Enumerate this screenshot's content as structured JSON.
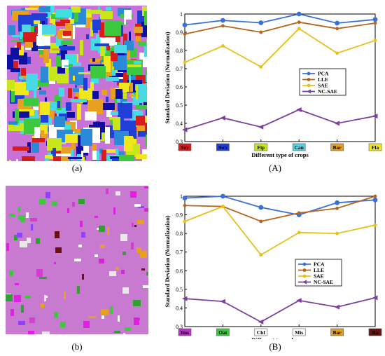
{
  "captions": {
    "a": "(a)",
    "A": "(A)",
    "b": "(b)",
    "B": "(B)"
  },
  "colors": {
    "PCA": "#3a6fd8",
    "LLE": "#b5651d",
    "SAE": "#e8c01a",
    "NC-SAE": "#7b3fa0",
    "map_bg_top": "#c872d8",
    "map_bg_bottom": "#c87ad0"
  },
  "chart_data": [
    {
      "type": "line",
      "panel": "A",
      "categories": [
        "Soy",
        "Sub",
        "Fip",
        "Can",
        "Bar",
        "Fla"
      ],
      "category_colors": [
        "#d81b1b",
        "#1f3fd6",
        "#c8e61a",
        "#49d8e8",
        "#e8a020",
        "#f0e81a"
      ],
      "xlabel": "Different type of crops",
      "ylabel": "Standard Deviation (Normalization)",
      "ylim": [
        0.3,
        1.0
      ],
      "yticks": [
        "0.3",
        "0.4",
        "0.5",
        "0.6",
        "0.7",
        "0.8",
        "0.9",
        "1"
      ],
      "legend_position": "right",
      "series": [
        {
          "name": "PCA",
          "values": [
            0.94,
            0.965,
            0.952,
            1.0,
            0.95,
            0.97
          ]
        },
        {
          "name": "LLE",
          "values": [
            0.89,
            0.935,
            0.9,
            0.955,
            0.92,
            0.95
          ]
        },
        {
          "name": "SAE",
          "values": [
            0.735,
            0.825,
            0.71,
            0.92,
            0.785,
            0.855
          ]
        },
        {
          "name": "NC-SAE",
          "values": [
            0.365,
            0.43,
            0.38,
            0.475,
            0.4,
            0.44
          ]
        }
      ]
    },
    {
      "type": "line",
      "panel": "B",
      "categories": [
        "Bus",
        "Oat",
        "Chf",
        "Mis",
        "Bar",
        "Ra"
      ],
      "category_colors": [
        "#c030d0",
        "#3ec83e",
        "#ffffff",
        "#ffffff",
        "#e0a020",
        "#6b1010"
      ],
      "xlabel": "Different type of crops",
      "ylabel": "Standard Deviation (Normalization)",
      "ylim": [
        0.3,
        1.0
      ],
      "yticks": [
        "0.3",
        "0.4",
        "0.5",
        "0.6",
        "0.7",
        "0.8",
        "0.9",
        "1"
      ],
      "legend_position": "right",
      "series": [
        {
          "name": "PCA",
          "values": [
            0.99,
            1.0,
            0.94,
            0.9,
            0.965,
            0.98
          ]
        },
        {
          "name": "LLE",
          "values": [
            0.95,
            0.945,
            0.865,
            0.91,
            0.935,
            1.0
          ]
        },
        {
          "name": "SAE",
          "values": [
            0.865,
            0.945,
            0.685,
            0.805,
            0.8,
            0.845
          ]
        },
        {
          "name": "NC-SAE",
          "values": [
            0.45,
            0.435,
            0.325,
            0.44,
            0.405,
            0.455
          ]
        }
      ]
    }
  ]
}
